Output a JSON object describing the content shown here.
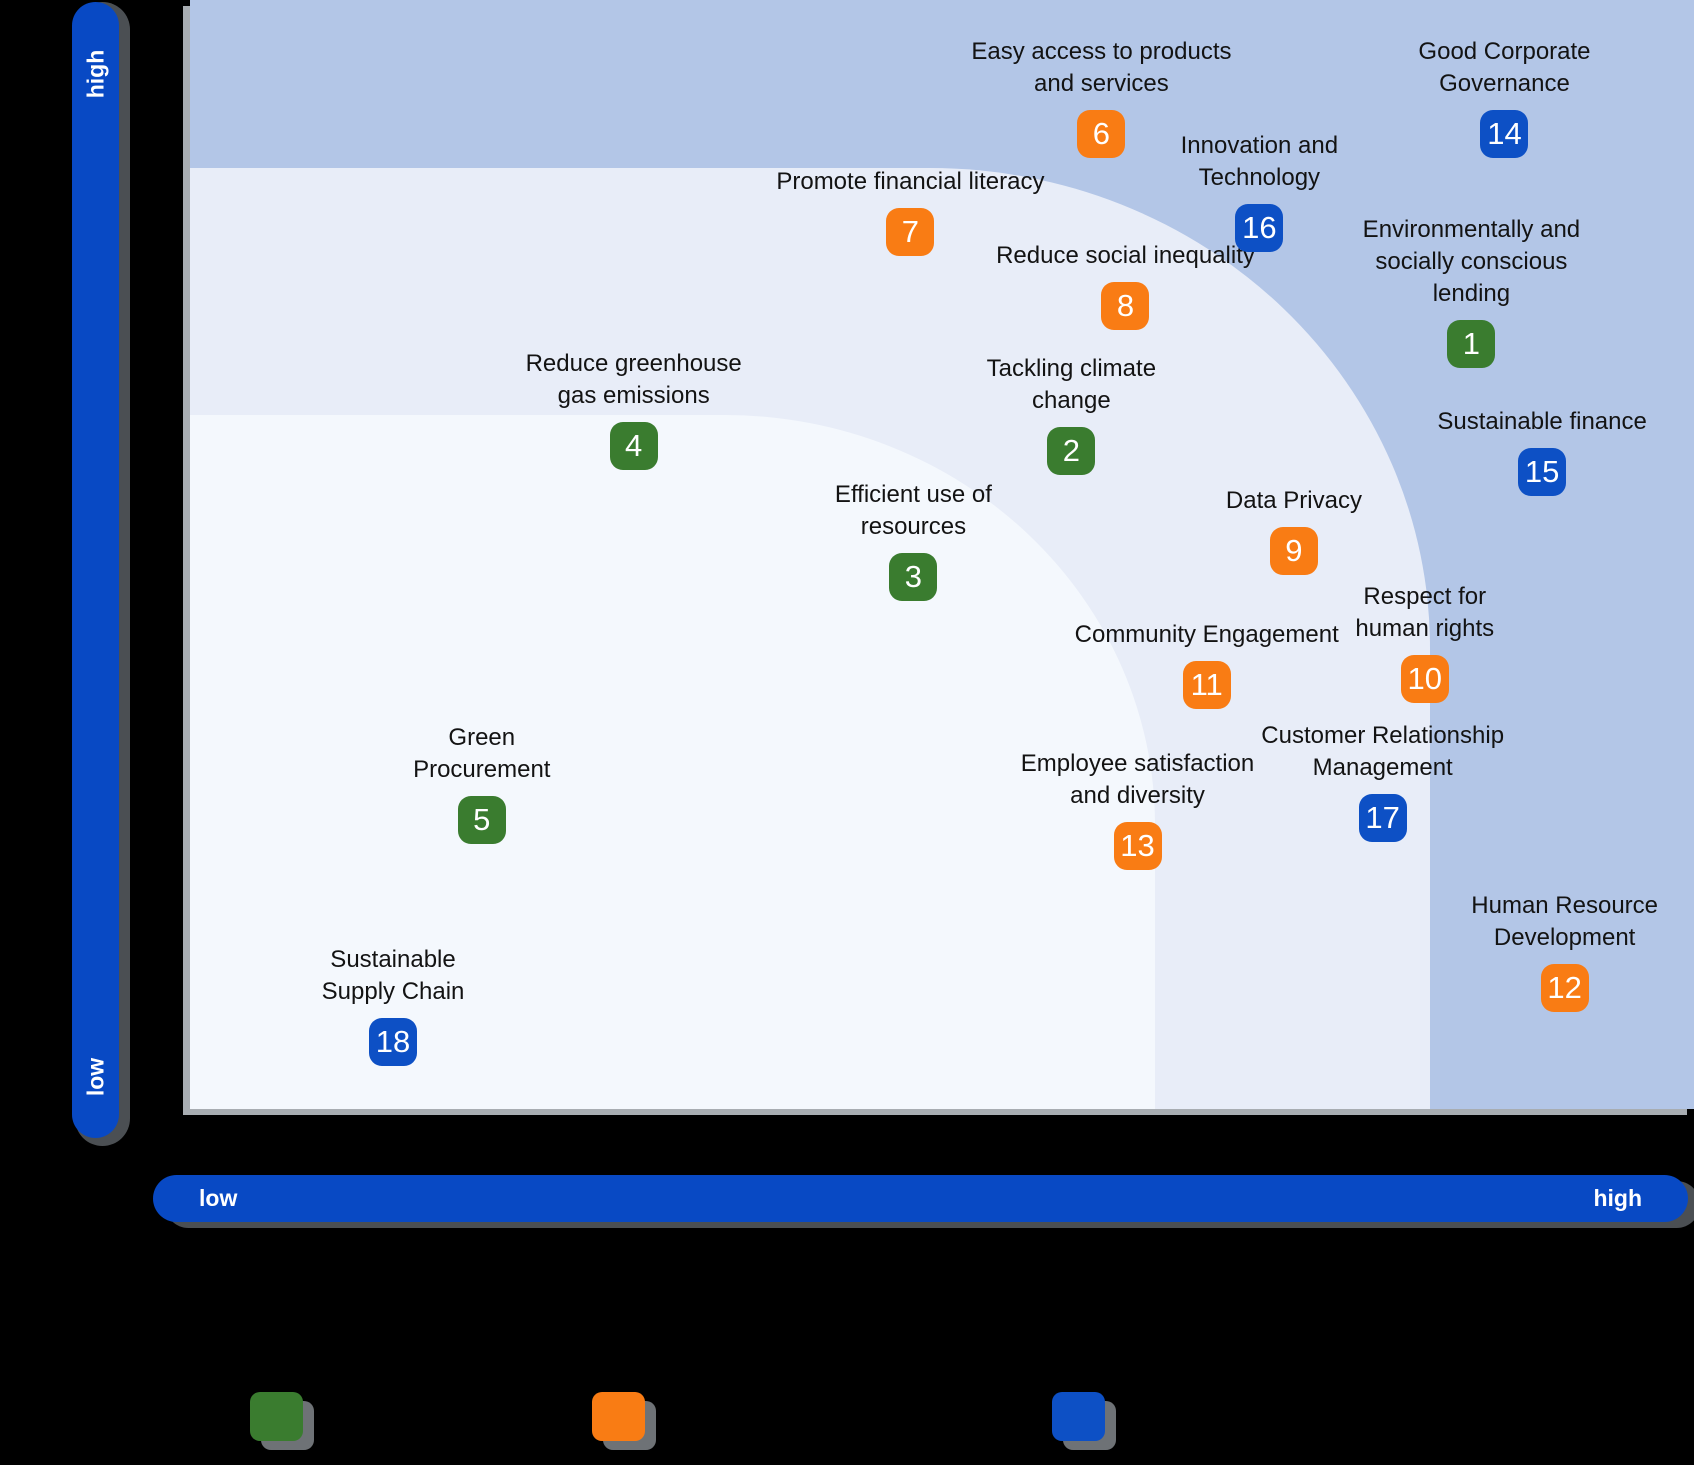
{
  "colors": {
    "green": "#3a7c2f",
    "orange": "#f97c14",
    "blue": "#0d50c5",
    "axis_bar": "#0849c4",
    "zone_high": "#b3c6e7",
    "zone_medium": "#e8edf8",
    "zone_low": "#f4f8fd",
    "label_text": "#131313",
    "badge_text": "#ffffff"
  },
  "legend": {
    "swatches": [
      {
        "category": "green"
      },
      {
        "category": "orange"
      },
      {
        "category": "blue"
      }
    ]
  },
  "chart_data": {
    "type": "scatter",
    "x_axis": {
      "label_left": "low",
      "label_right": "high"
    },
    "y_axis": {
      "label_top": "high",
      "label_bottom": "low"
    },
    "zones": [
      {
        "name": "high",
        "color": "#b3c6e7"
      },
      {
        "name": "medium",
        "color": "#e8edf8"
      },
      {
        "name": "low",
        "color": "#f4f8fd"
      }
    ],
    "points": [
      {
        "id": 1,
        "category": "green",
        "x": 0.852,
        "y": 0.69,
        "lines": [
          "Environmentally and",
          "socially conscious",
          "lending"
        ]
      },
      {
        "id": 2,
        "category": "green",
        "x": 0.586,
        "y": 0.593,
        "lines": [
          "Tackling climate",
          "change"
        ]
      },
      {
        "id": 3,
        "category": "green",
        "x": 0.481,
        "y": 0.48,
        "lines": [
          "Efficient use of",
          "resources"
        ]
      },
      {
        "id": 4,
        "category": "green",
        "x": 0.295,
        "y": 0.598,
        "lines": [
          "Reduce greenhouse",
          "gas emissions"
        ]
      },
      {
        "id": 5,
        "category": "green",
        "x": 0.194,
        "y": 0.261,
        "lines": [
          "Green",
          "Procurement"
        ]
      },
      {
        "id": 6,
        "category": "orange",
        "x": 0.606,
        "y": 0.879,
        "lines": [
          "Easy access to products",
          "and services"
        ]
      },
      {
        "id": 7,
        "category": "orange",
        "x": 0.479,
        "y": 0.791,
        "lines": [
          "Promote financial literacy"
        ]
      },
      {
        "id": 8,
        "category": "orange",
        "x": 0.622,
        "y": 0.724,
        "lines": [
          "Reduce social inequality"
        ]
      },
      {
        "id": 9,
        "category": "orange",
        "x": 0.734,
        "y": 0.503,
        "lines": [
          "Data Privacy"
        ]
      },
      {
        "id": 10,
        "category": "orange",
        "x": 0.821,
        "y": 0.388,
        "lines": [
          "Respect for",
          "human rights"
        ]
      },
      {
        "id": 11,
        "category": "orange",
        "x": 0.676,
        "y": 0.382,
        "lines": [
          "Community Engagement"
        ]
      },
      {
        "id": 12,
        "category": "orange",
        "x": 0.914,
        "y": 0.109,
        "lines": [
          "Human Resource",
          "Development"
        ]
      },
      {
        "id": 13,
        "category": "orange",
        "x": 0.63,
        "y": 0.237,
        "lines": [
          "Employee satisfaction",
          "and diversity"
        ]
      },
      {
        "id": 14,
        "category": "blue",
        "x": 0.874,
        "y": 0.879,
        "lines": [
          "Good Corporate",
          "Governance"
        ]
      },
      {
        "id": 15,
        "category": "blue",
        "x": 0.899,
        "y": 0.574,
        "lines": [
          "Sustainable finance"
        ]
      },
      {
        "id": 16,
        "category": "blue",
        "x": 0.711,
        "y": 0.794,
        "lines": [
          "Innovation and",
          "Technology"
        ]
      },
      {
        "id": 17,
        "category": "blue",
        "x": 0.793,
        "y": 0.262,
        "lines": [
          "Customer Relationship",
          "Management"
        ]
      },
      {
        "id": 18,
        "category": "blue",
        "x": 0.135,
        "y": 0.06,
        "lines": [
          "Sustainable",
          "Supply Chain"
        ]
      }
    ]
  }
}
